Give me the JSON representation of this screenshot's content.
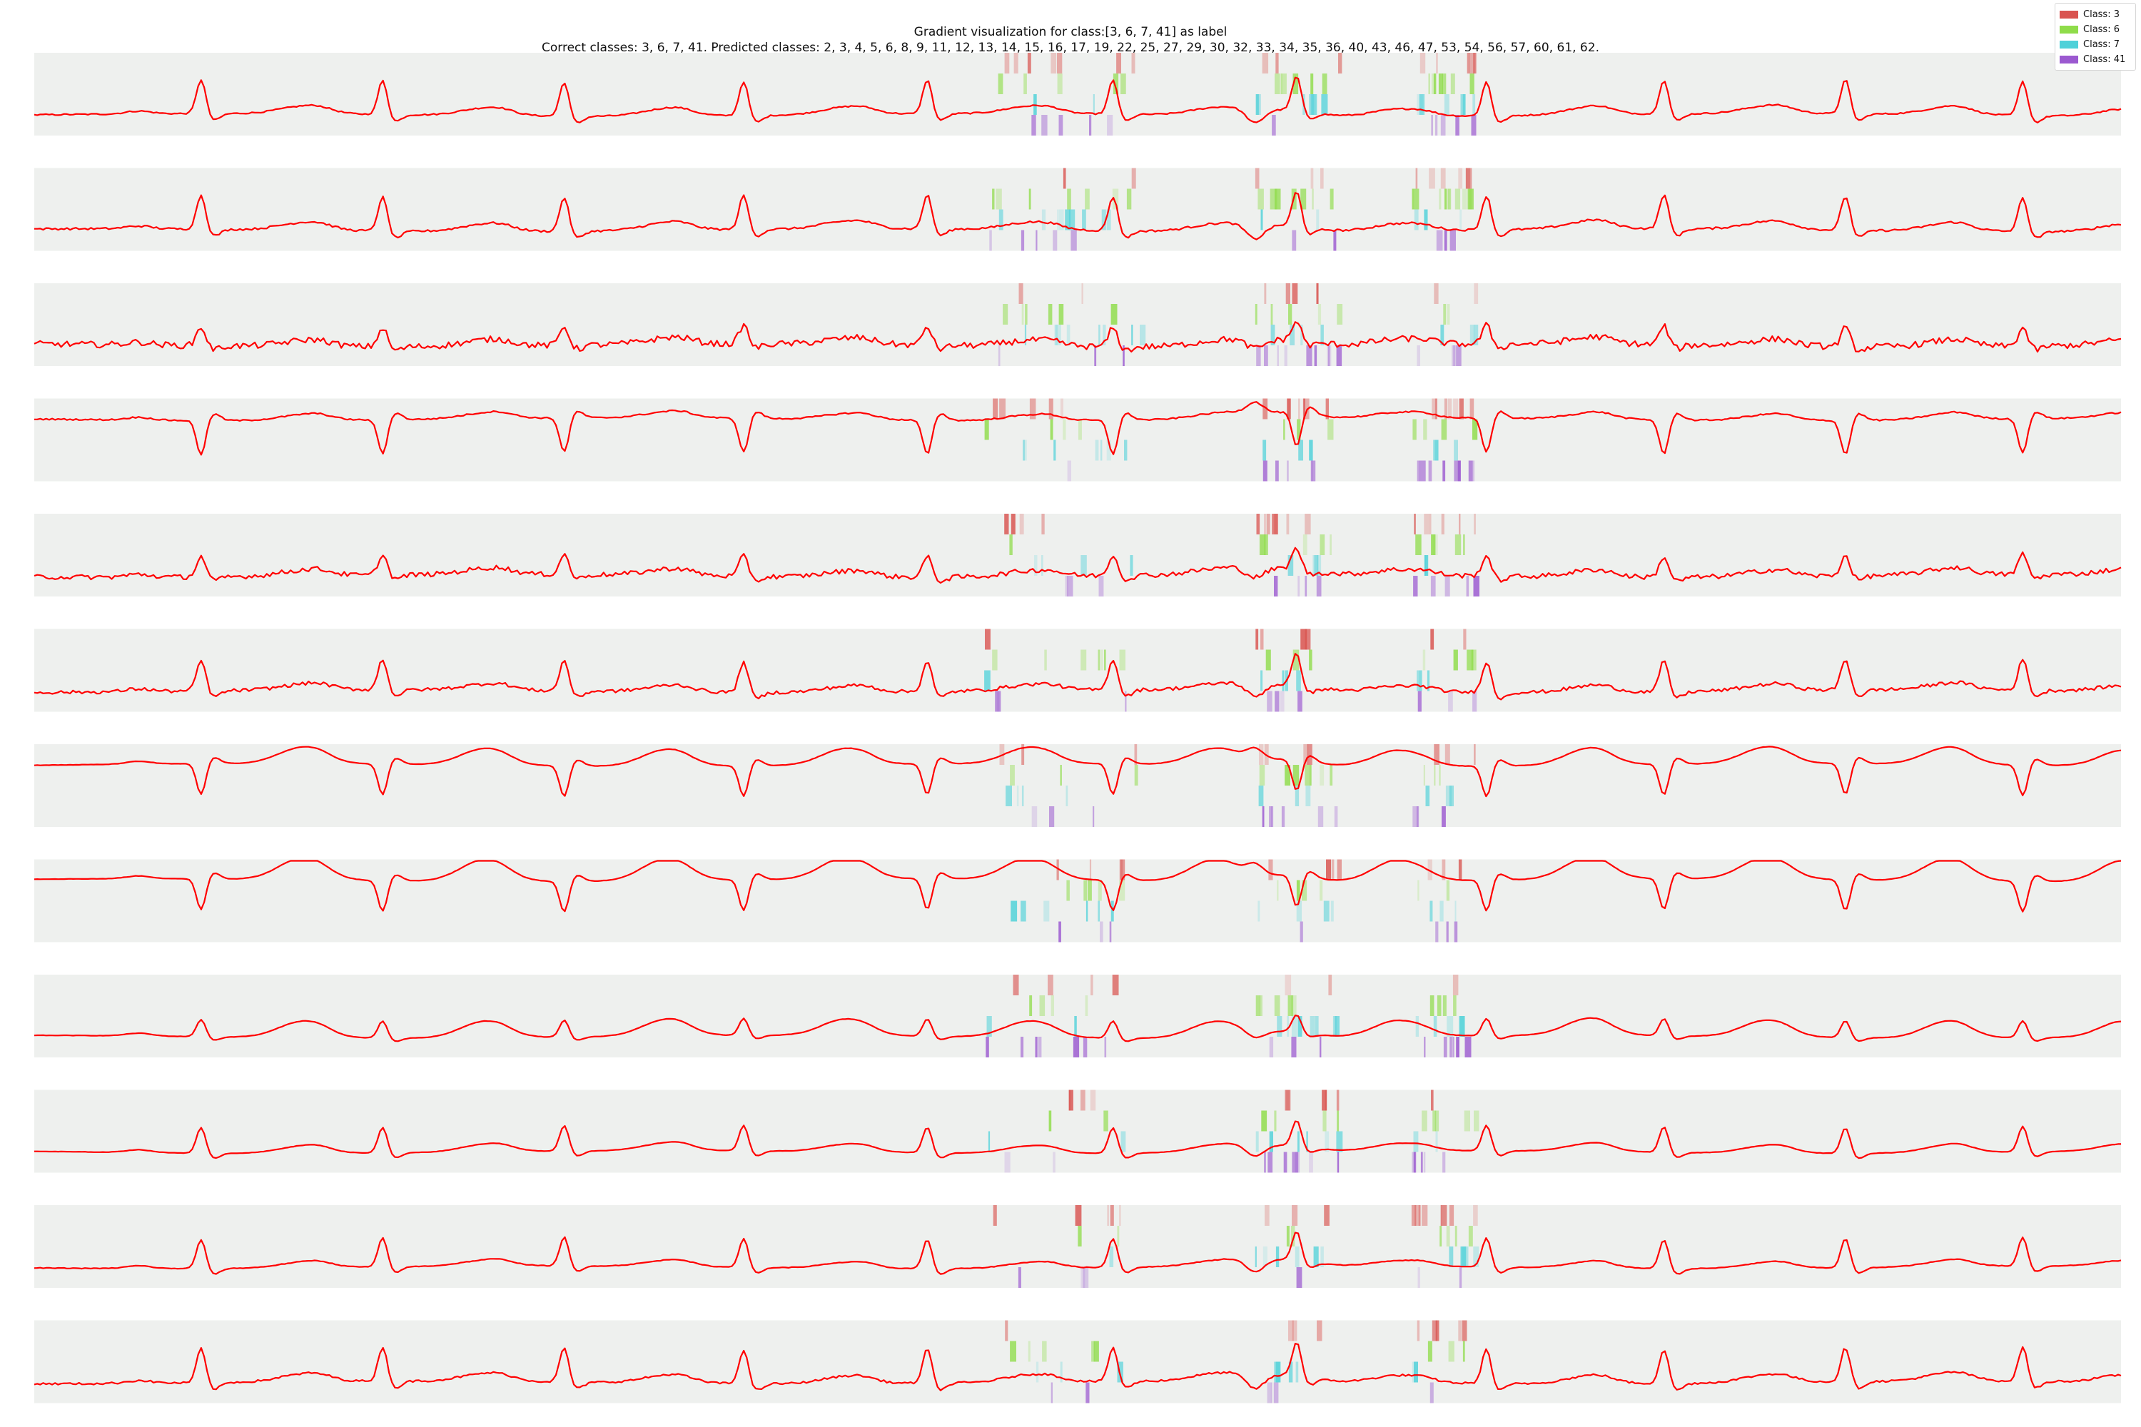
{
  "chart_data": {
    "type": "line",
    "title": "Gradient visualization for class:[3, 6, 7, 41] as label",
    "subtitle": "Correct classes: 3, 6, 7, 41. Predicted classes: 2, 3, 4, 5, 6, 8, 9, 11, 12, 13, 14, 15, 16, 17, 19, 22, 25, 27, 29, 30, 32, 33, 34, 35, 36, 40, 43, 46, 47, 53, 54, 56, 57, 60, 61, 62.",
    "legend": {
      "placement": "top-right",
      "entries": [
        {
          "label": "Class: 3",
          "color": "#d9534f"
        },
        {
          "label": "Class: 6",
          "color": "#8fdc4a"
        },
        {
          "label": "Class: 7",
          "color": "#4fd1d9"
        },
        {
          "label": "Class: 41",
          "color": "#9b59d0"
        }
      ]
    },
    "signal_color": "#ff0000",
    "panel_background": "#eef0ee",
    "axes_visible": false,
    "grid": false,
    "beat_positions": [
      0.08,
      0.167,
      0.254,
      0.34,
      0.428,
      0.517,
      0.605,
      0.696,
      0.781,
      0.868,
      0.953
    ],
    "highlight_regions": [
      0.455,
      0.53,
      0.585,
      0.625,
      0.66,
      0.69
    ],
    "leads": [
      {
        "polarity": 1,
        "twave": 0.2,
        "noise": 0.02
      },
      {
        "polarity": 1,
        "twave": 0.2,
        "noise": 0.03
      },
      {
        "polarity": 0.55,
        "twave": 0.15,
        "noise": 0.09
      },
      {
        "polarity": -1,
        "twave": 0.15,
        "noise": 0.02
      },
      {
        "polarity": 0.6,
        "twave": 0.15,
        "noise": 0.07
      },
      {
        "polarity": 0.9,
        "twave": 0.15,
        "noise": 0.05
      },
      {
        "polarity": -0.9,
        "twave": 0.45,
        "noise": 0.005
      },
      {
        "polarity": -0.9,
        "twave": 0.6,
        "noise": 0.005
      },
      {
        "polarity": 0.5,
        "twave": 0.45,
        "noise": 0.005
      },
      {
        "polarity": 0.75,
        "twave": 0.2,
        "noise": 0.005
      },
      {
        "polarity": 0.85,
        "twave": 0.15,
        "noise": 0.01
      },
      {
        "polarity": 1,
        "twave": 0.2,
        "noise": 0.03
      }
    ]
  }
}
